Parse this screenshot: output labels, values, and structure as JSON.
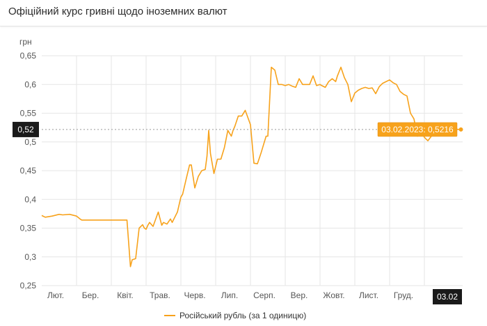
{
  "header": {
    "title": "Офіційний курс гривні щодо іноземних валют"
  },
  "chart_data": {
    "type": "line",
    "ylabel": "грн",
    "ylim": [
      0.25,
      0.65
    ],
    "yticks": [
      "0,25",
      "0,3",
      "0,35",
      "0,4",
      "0,45",
      "0,5",
      "0,55",
      "0,6",
      "0,65"
    ],
    "ytick_values": [
      0.25,
      0.3,
      0.35,
      0.4,
      0.45,
      0.5,
      0.55,
      0.6,
      0.65
    ],
    "xtick_labels": [
      "Лют.",
      "Бер.",
      "Квіт.",
      "Трав.",
      "Черв.",
      "Лип.",
      "Серп.",
      "Вер.",
      "Жовт.",
      "Лист.",
      "Груд."
    ],
    "xtick_months": [
      1,
      2,
      3,
      4,
      5,
      6,
      7,
      8,
      9,
      10,
      11
    ],
    "x_range_months": [
      0,
      12.1
    ],
    "grid": true,
    "legend": "bottom",
    "series": [
      {
        "name": "Російський рубль (за 1 одиницю)",
        "color": "#f7a21b",
        "x_months": [
          0,
          0.1,
          0.3,
          0.5,
          0.6,
          0.8,
          1.0,
          1.1,
          1.15,
          1.5,
          1.9,
          2.45,
          2.55,
          2.6,
          2.65,
          2.7,
          2.8,
          2.9,
          2.95,
          3.0,
          3.05,
          3.1,
          3.2,
          3.35,
          3.45,
          3.5,
          3.6,
          3.7,
          3.75,
          3.9,
          4.0,
          4.05,
          4.15,
          4.25,
          4.3,
          4.4,
          4.5,
          4.6,
          4.7,
          4.75,
          4.8,
          4.85,
          4.95,
          5.05,
          5.15,
          5.25,
          5.35,
          5.45,
          5.5,
          5.55,
          5.65,
          5.75,
          5.85,
          6.0,
          6.1,
          6.2,
          6.3,
          6.45,
          6.5,
          6.6,
          6.7,
          6.8,
          6.9,
          7.0,
          7.1,
          7.2,
          7.3,
          7.4,
          7.5,
          7.6,
          7.7,
          7.8,
          7.9,
          8.0,
          8.05,
          8.15,
          8.25,
          8.35,
          8.45,
          8.5,
          8.6,
          8.7,
          8.8,
          8.9,
          9.0,
          9.1,
          9.2,
          9.3,
          9.4,
          9.5,
          9.6,
          9.7,
          9.8,
          9.9,
          10.0,
          10.1,
          10.2,
          10.3,
          10.4,
          10.5,
          10.6,
          10.7,
          10.8,
          10.9,
          11.0,
          11.1,
          11.2,
          11.3,
          11.4,
          11.5,
          11.6,
          11.7,
          11.8,
          11.9,
          12.05
        ],
        "values": [
          0.372,
          0.369,
          0.371,
          0.374,
          0.373,
          0.374,
          0.371,
          0.366,
          0.364,
          0.364,
          0.364,
          0.364,
          0.283,
          0.295,
          0.296,
          0.297,
          0.35,
          0.356,
          0.35,
          0.348,
          0.355,
          0.36,
          0.353,
          0.378,
          0.355,
          0.36,
          0.357,
          0.366,
          0.36,
          0.378,
          0.404,
          0.409,
          0.435,
          0.46,
          0.46,
          0.42,
          0.44,
          0.45,
          0.452,
          0.475,
          0.52,
          0.48,
          0.445,
          0.47,
          0.47,
          0.49,
          0.52,
          0.51,
          0.52,
          0.527,
          0.545,
          0.545,
          0.555,
          0.53,
          0.463,
          0.462,
          0.48,
          0.51,
          0.51,
          0.63,
          0.625,
          0.6,
          0.6,
          0.598,
          0.6,
          0.597,
          0.595,
          0.61,
          0.6,
          0.6,
          0.6,
          0.615,
          0.598,
          0.6,
          0.598,
          0.595,
          0.605,
          0.61,
          0.605,
          0.615,
          0.63,
          0.612,
          0.6,
          0.57,
          0.585,
          0.59,
          0.593,
          0.595,
          0.593,
          0.594,
          0.584,
          0.596,
          0.602,
          0.605,
          0.608,
          0.603,
          0.6,
          0.588,
          0.583,
          0.58,
          0.55,
          0.54,
          0.51,
          0.52,
          0.508,
          0.502,
          0.51,
          0.532,
          0.53,
          0.522,
          0.52,
          0.524,
          0.523,
          0.522,
          0.5216
        ]
      }
    ],
    "crosshair": {
      "value_label": "0,52",
      "date_label": "03.02"
    },
    "tooltip": {
      "text": "03.02.2023: 0,5216"
    }
  }
}
